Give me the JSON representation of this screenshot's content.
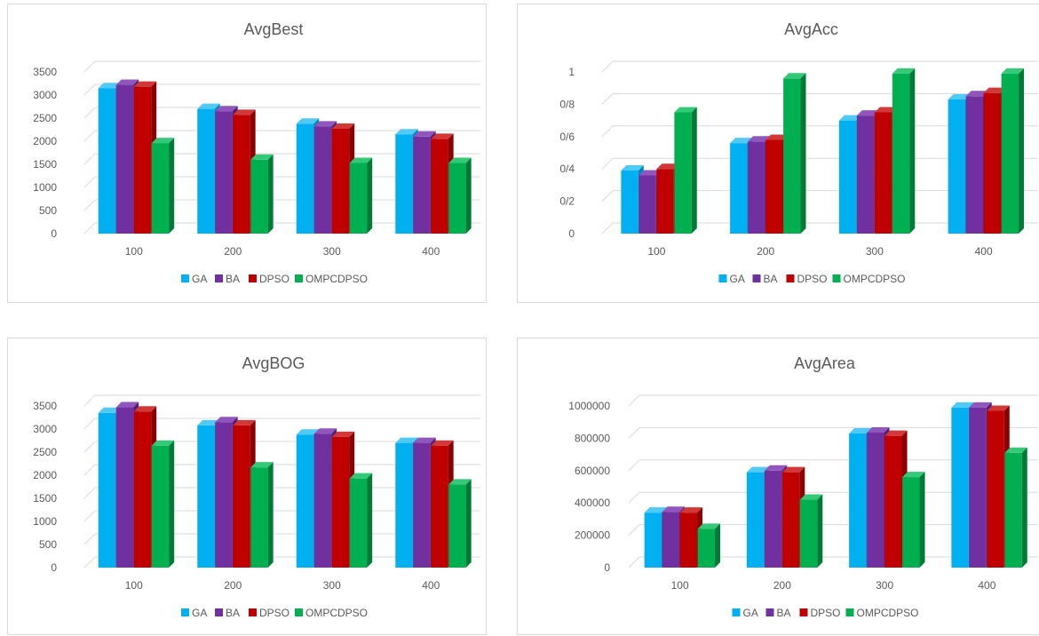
{
  "series_colors": {
    "GA": {
      "front": "#00b0f0",
      "top": "#4fcaf5",
      "side": "#0088ba"
    },
    "BA": {
      "front": "#7030a0",
      "top": "#9156bd",
      "side": "#4f1f72"
    },
    "DPSO": {
      "front": "#c00000",
      "top": "#d23838",
      "side": "#8a0000"
    },
    "OMPCDPSO": {
      "front": "#00b050",
      "top": "#34c978",
      "side": "#007a37"
    }
  },
  "chart_data": [
    {
      "type": "bar",
      "title": "AvgBest",
      "categories": [
        "100",
        "200",
        "300",
        "400"
      ],
      "series": [
        {
          "name": "GA",
          "values": [
            3150,
            2700,
            2380,
            2150
          ]
        },
        {
          "name": "BA",
          "values": [
            3220,
            2650,
            2320,
            2100
          ]
        },
        {
          "name": "DPSO",
          "values": [
            3180,
            2570,
            2270,
            2050
          ]
        },
        {
          "name": "OMPCDPSO",
          "values": [
            1960,
            1600,
            1530,
            1530
          ]
        }
      ],
      "y_ticks": [
        "0",
        "500",
        "1000",
        "1500",
        "2000",
        "2500",
        "3000",
        "3500"
      ],
      "ylim": [
        0,
        3500
      ]
    },
    {
      "type": "bar",
      "title": "AvgAcc",
      "categories": [
        "100",
        "200",
        "300",
        "400"
      ],
      "series": [
        {
          "name": "GA",
          "values": [
            0.39,
            0.56,
            0.7,
            0.83
          ]
        },
        {
          "name": "BA",
          "values": [
            0.36,
            0.57,
            0.73,
            0.85
          ]
        },
        {
          "name": "DPSO",
          "values": [
            0.4,
            0.58,
            0.75,
            0.87
          ]
        },
        {
          "name": "OMPCDPSO",
          "values": [
            0.75,
            0.96,
            0.99,
            0.99
          ]
        }
      ],
      "y_ticks": [
        "0",
        "0/2",
        "0/4",
        "0/6",
        "0/8",
        "1"
      ],
      "ylim": [
        0,
        1
      ]
    },
    {
      "type": "bar",
      "title": "AvgBOG",
      "categories": [
        "100",
        "200",
        "300",
        "400"
      ],
      "series": [
        {
          "name": "GA",
          "values": [
            3350,
            3080,
            2880,
            2700
          ]
        },
        {
          "name": "BA",
          "values": [
            3470,
            3150,
            2900,
            2700
          ]
        },
        {
          "name": "DPSO",
          "values": [
            3380,
            3080,
            2830,
            2640
          ]
        },
        {
          "name": "OMPCDPSO",
          "values": [
            2640,
            2170,
            1930,
            1800
          ]
        }
      ],
      "y_ticks": [
        "0",
        "500",
        "1000",
        "1500",
        "2000",
        "2500",
        "3000",
        "3500"
      ],
      "ylim": [
        0,
        3500
      ]
    },
    {
      "type": "bar",
      "title": "AvgArea",
      "categories": [
        "100",
        "200",
        "300",
        "400"
      ],
      "series": [
        {
          "name": "GA",
          "values": [
            340000,
            590000,
            830000,
            990000
          ]
        },
        {
          "name": "BA",
          "values": [
            345000,
            600000,
            835000,
            990000
          ]
        },
        {
          "name": "DPSO",
          "values": [
            340000,
            590000,
            815000,
            970000
          ]
        },
        {
          "name": "OMPCDPSO",
          "values": [
            240000,
            420000,
            560000,
            710000
          ]
        }
      ],
      "y_ticks": [
        "0",
        "200000",
        "400000",
        "600000",
        "800000",
        "1000000"
      ],
      "ylim": [
        0,
        1000000
      ]
    }
  ]
}
